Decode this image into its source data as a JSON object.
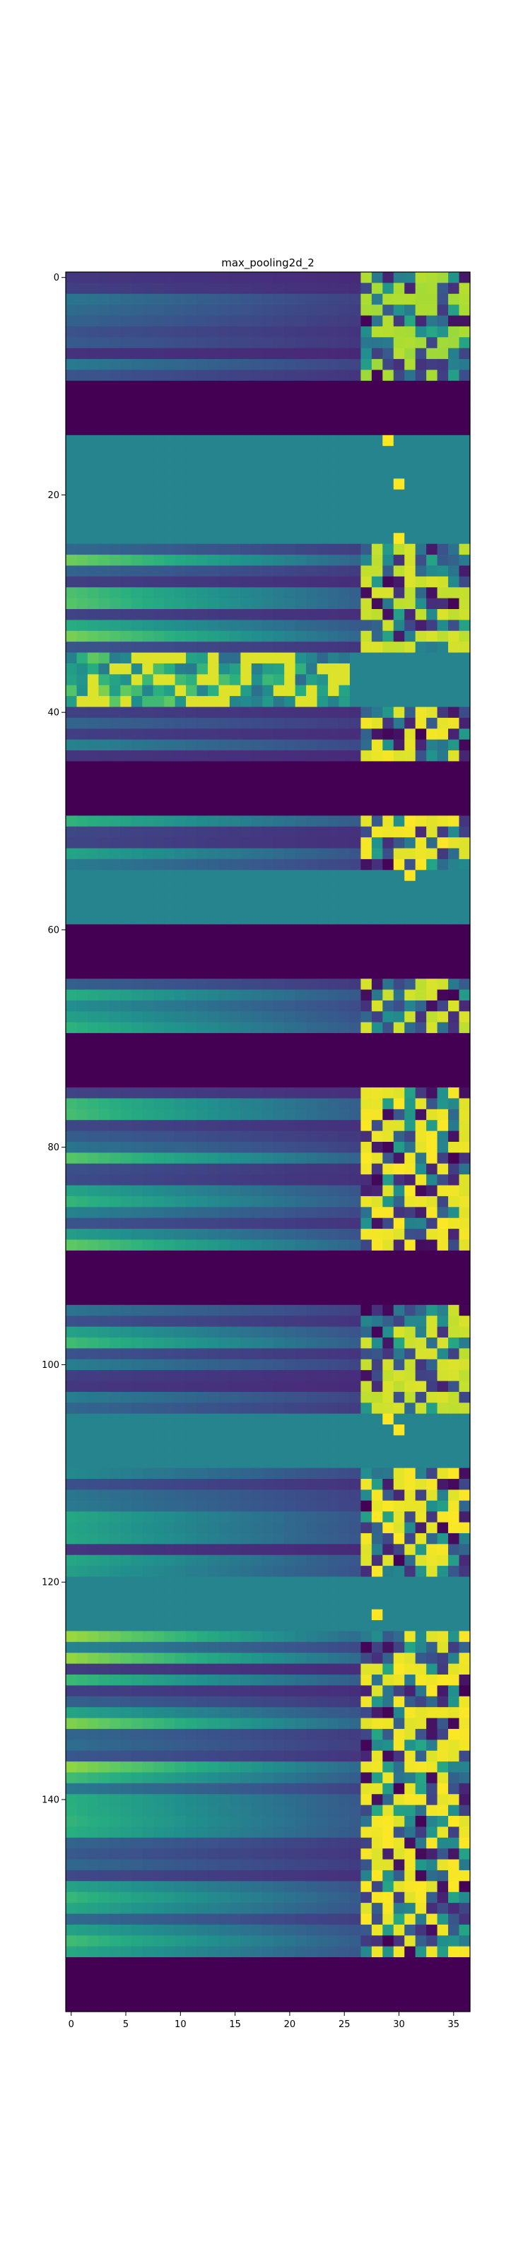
{
  "chart_data": {
    "type": "heatmap",
    "title": "max_pooling2d_2",
    "colormap": "viridis",
    "columns": 37,
    "rows": 160,
    "xlim": [
      -0.5,
      36.5
    ],
    "ylim": [
      159.5,
      -0.5
    ],
    "x_ticks": [
      0,
      5,
      10,
      15,
      20,
      25,
      30,
      35
    ],
    "y_ticks": [
      0,
      20,
      40,
      60,
      80,
      100,
      120,
      140
    ],
    "bands": [
      {
        "rows": [
          0,
          9
        ],
        "pattern": "ramp",
        "left": 0.35,
        "right": 0.85
      },
      {
        "rows": [
          10,
          14
        ],
        "pattern": "zero"
      },
      {
        "rows": [
          15,
          24
        ],
        "pattern": "flat",
        "level": 0.45
      },
      {
        "rows": [
          25,
          34
        ],
        "pattern": "ramp",
        "left": 0.7,
        "right": 0.9
      },
      {
        "rows": [
          35,
          39
        ],
        "pattern": "noisy",
        "left": 0.85,
        "right": 0.5
      },
      {
        "rows": [
          40,
          44
        ],
        "pattern": "ramp",
        "left": 0.35,
        "right": 0.95
      },
      {
        "rows": [
          45,
          49
        ],
        "pattern": "zero"
      },
      {
        "rows": [
          50,
          54
        ],
        "pattern": "ramp",
        "left": 0.55,
        "right": 0.95
      },
      {
        "rows": [
          55,
          59
        ],
        "pattern": "flat",
        "level": 0.45
      },
      {
        "rows": [
          60,
          64
        ],
        "pattern": "zero"
      },
      {
        "rows": [
          65,
          69
        ],
        "pattern": "ramp",
        "left": 0.55,
        "right": 0.9
      },
      {
        "rows": [
          70,
          74
        ],
        "pattern": "zero"
      },
      {
        "rows": [
          75,
          89
        ],
        "pattern": "ramp",
        "left": 0.65,
        "right": 0.95
      },
      {
        "rows": [
          90,
          94
        ],
        "pattern": "zero"
      },
      {
        "rows": [
          95,
          104
        ],
        "pattern": "ramp",
        "left": 0.6,
        "right": 0.9
      },
      {
        "rows": [
          105,
          109
        ],
        "pattern": "flat",
        "level": 0.45
      },
      {
        "rows": [
          110,
          119
        ],
        "pattern": "ramp",
        "left": 0.5,
        "right": 0.95
      },
      {
        "rows": [
          120,
          124
        ],
        "pattern": "flat",
        "level": 0.45
      },
      {
        "rows": [
          125,
          154
        ],
        "pattern": "ramp",
        "left": 0.75,
        "right": 0.95
      },
      {
        "rows": [
          155,
          159
        ],
        "pattern": "zero"
      }
    ]
  }
}
